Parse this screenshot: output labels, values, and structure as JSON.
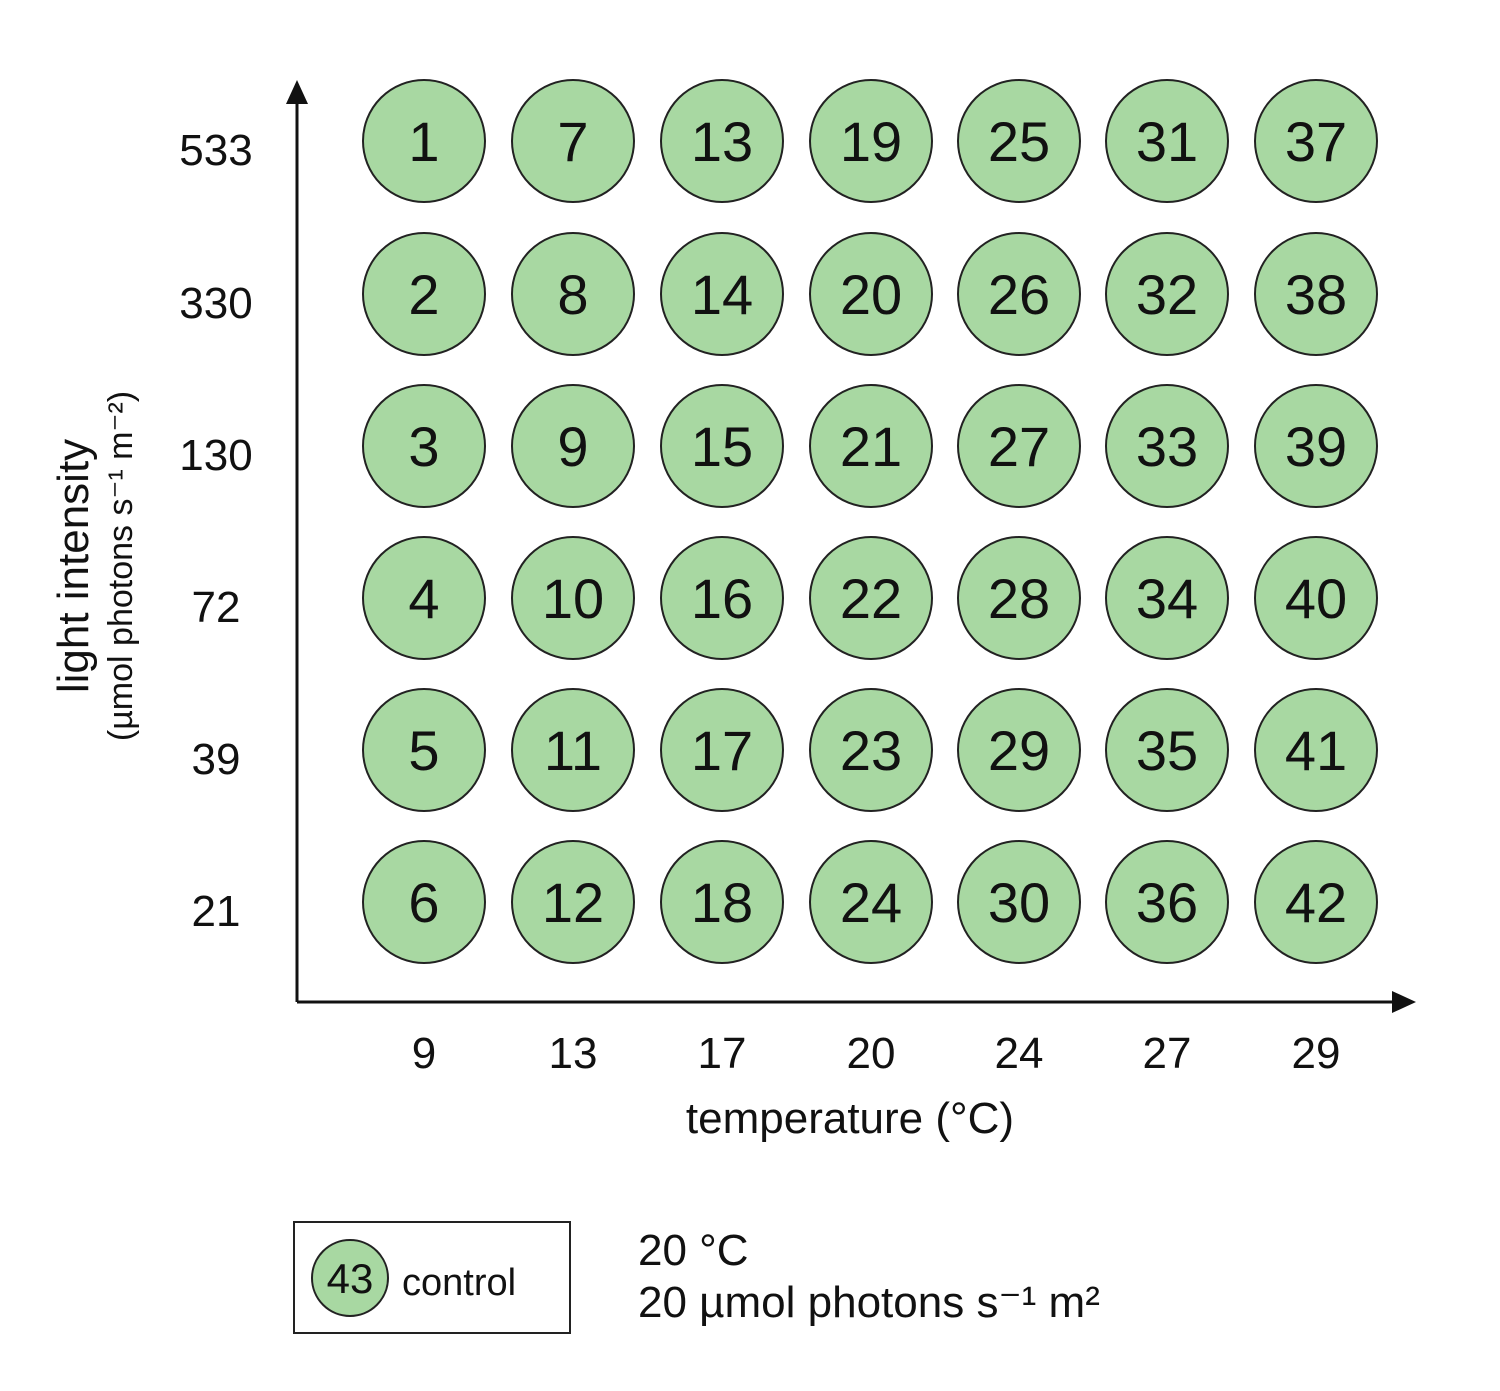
{
  "x_axis": {
    "title": "temperature (°C)",
    "ticks": [
      "9",
      "13",
      "17",
      "20",
      "24",
      "27",
      "29"
    ]
  },
  "y_axis": {
    "title": "light intensity",
    "subtitle": "(µmol photons s⁻¹ m⁻²)",
    "ticks": [
      "533",
      "330",
      "130",
      "72",
      "39",
      "21"
    ]
  },
  "grid": {
    "fill_color": "#a8d8a2",
    "stroke_color": "#222222",
    "cells": [
      [
        "1",
        "7",
        "13",
        "19",
        "25",
        "31",
        "37"
      ],
      [
        "2",
        "8",
        "14",
        "20",
        "26",
        "32",
        "38"
      ],
      [
        "3",
        "9",
        "15",
        "21",
        "27",
        "33",
        "39"
      ],
      [
        "4",
        "10",
        "16",
        "22",
        "28",
        "34",
        "40"
      ],
      [
        "5",
        "11",
        "17",
        "23",
        "29",
        "35",
        "41"
      ],
      [
        "6",
        "12",
        "18",
        "24",
        "30",
        "36",
        "42"
      ]
    ]
  },
  "legend": {
    "number": "43",
    "label": "control",
    "condition_line1": "20 °C",
    "condition_line2": "20 µmol photons s⁻¹ m²"
  }
}
